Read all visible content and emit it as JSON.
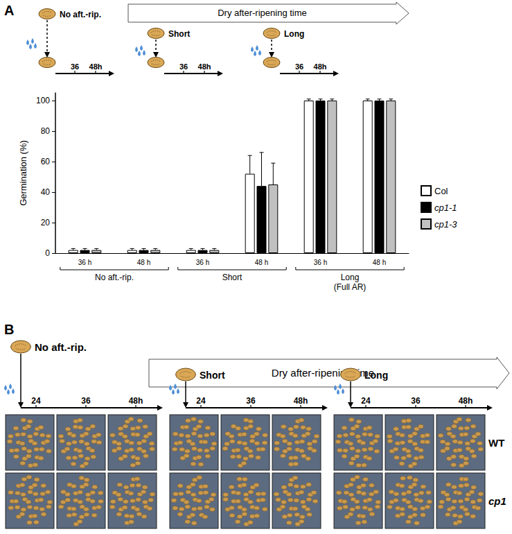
{
  "chart_data": {
    "type": "bar",
    "categories": [
      "36 h",
      "48 h",
      "36 h",
      "48 h",
      "36 h",
      "48 h"
    ],
    "groups": [
      "No aft.-rip.",
      "Short",
      "Long\n(Full AR)"
    ],
    "y_label": "Germination (%)",
    "ylim": [
      0,
      105
    ],
    "yticks": [
      0,
      20,
      40,
      60,
      80,
      100
    ],
    "grid": false,
    "legend": "right",
    "series": [
      {
        "name": "Col",
        "color": "#ffffff",
        "values": [
          2,
          2,
          2,
          52,
          100,
          100
        ],
        "errors": [
          1,
          1,
          1,
          12,
          1,
          1
        ]
      },
      {
        "name": "cp1-1",
        "color": "#000000",
        "values": [
          2,
          2,
          2,
          44,
          100,
          100
        ],
        "errors": [
          1,
          1,
          1,
          22,
          1,
          1
        ]
      },
      {
        "name": "cp1-3",
        "color": "#c0c0c0",
        "values": [
          2,
          2,
          2,
          45,
          100,
          100
        ],
        "errors": [
          1,
          1,
          1,
          14,
          1,
          1
        ]
      }
    ]
  },
  "panel_labels": [
    "A",
    "B"
  ],
  "schematic_a": {
    "timeline_title": "Dry after-ripening time",
    "conditions": [
      "No aft.-rip.",
      "Short",
      "Long"
    ],
    "time_ticks": [
      "36",
      "48h"
    ]
  },
  "panel_b": {
    "timeline_title": "Dry after-ripening time",
    "conditions": [
      "No aft.-rip.",
      "Short",
      "Long"
    ],
    "time_ticks": [
      "24",
      "36",
      "48h"
    ],
    "rows": [
      "WT",
      "cp1"
    ]
  }
}
